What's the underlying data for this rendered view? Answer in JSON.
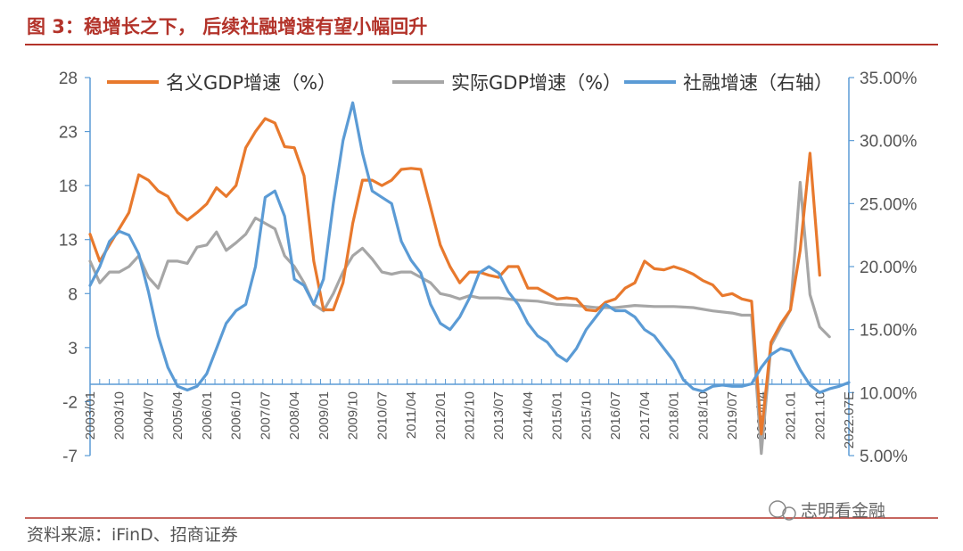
{
  "header": {
    "title": "图 3：稳增长之下，  后续社融增速有望小幅回升"
  },
  "footer": {
    "source": "资料来源：iFinD、招商证券",
    "watermark": "志明看金融"
  },
  "colors": {
    "nominal": "#e8792d",
    "real": "#a6a6a6",
    "tsf": "#5b9bd5",
    "title": "#b3332a",
    "rule": "#b3332a"
  },
  "chart_data": {
    "type": "line",
    "title": "图 3：稳增长之下，  后续社融增速有望小幅回升",
    "legend_position": "top",
    "grid": false,
    "y_left": {
      "ticks": [
        28,
        23,
        18,
        13,
        8,
        3,
        -2,
        -7
      ],
      "min": -7,
      "max": 28
    },
    "y_right": {
      "ticks": [
        "35.00%",
        "30.00%",
        "25.00%",
        "20.00%",
        "15.00%",
        "10.00%",
        "5.00%"
      ],
      "min": 5,
      "max": 35
    },
    "x_ticks": [
      "2003/01",
      "2003/10",
      "2004/07",
      "2005/04",
      "2006/01",
      "2006/10",
      "2007/07",
      "2008/04",
      "2009/01",
      "2009/10",
      "2010/07",
      "2011/04",
      "2012/01",
      "2012/10",
      "2013/07",
      "2014/04",
      "2015/01",
      "2015/10",
      "2016/07",
      "2017/04",
      "2018/01",
      "2018/10",
      "2019/07",
      "2020/04",
      "2021.01",
      "2021.10",
      "2022.07E"
    ],
    "x_range": [
      2003.0,
      2022.5
    ],
    "series": [
      {
        "name": "名义GDP增速（%）",
        "axis": "left",
        "color": "#e8792d",
        "x": [
          2003.0,
          2003.25,
          2003.5,
          2003.75,
          2004.0,
          2004.25,
          2004.5,
          2004.75,
          2005.0,
          2005.25,
          2005.5,
          2005.75,
          2006.0,
          2006.25,
          2006.5,
          2006.75,
          2007.0,
          2007.25,
          2007.5,
          2007.75,
          2008.0,
          2008.25,
          2008.5,
          2008.75,
          2009.0,
          2009.25,
          2009.5,
          2009.75,
          2010.0,
          2010.25,
          2010.5,
          2010.75,
          2011.0,
          2011.25,
          2011.5,
          2011.75,
          2012.0,
          2012.25,
          2012.5,
          2012.75,
          2013.0,
          2013.25,
          2013.5,
          2013.75,
          2014.0,
          2014.25,
          2014.5,
          2014.75,
          2015.0,
          2015.25,
          2015.5,
          2015.75,
          2016.0,
          2016.25,
          2016.5,
          2016.75,
          2017.0,
          2017.25,
          2017.5,
          2017.75,
          2018.0,
          2018.25,
          2018.5,
          2018.75,
          2019.0,
          2019.25,
          2019.5,
          2019.75,
          2020.0,
          2020.25,
          2020.5,
          2020.75,
          2021.0,
          2021.25,
          2021.5,
          2021.75
        ],
        "values": [
          13.5,
          11.0,
          12.5,
          14.0,
          15.5,
          19.0,
          18.5,
          17.5,
          17.0,
          15.5,
          14.8,
          15.5,
          16.3,
          17.8,
          17.0,
          18.0,
          21.5,
          23.0,
          24.2,
          23.8,
          21.6,
          21.5,
          18.9,
          11.0,
          6.5,
          6.5,
          9.0,
          14.5,
          18.5,
          18.5,
          18.0,
          18.5,
          19.5,
          19.6,
          19.5,
          16.0,
          12.5,
          10.5,
          9.0,
          10.0,
          10.0,
          9.7,
          9.5,
          10.5,
          10.5,
          8.5,
          8.5,
          8.0,
          7.5,
          7.6,
          7.5,
          6.5,
          6.4,
          7.2,
          7.5,
          8.5,
          9.0,
          11.0,
          10.3,
          10.2,
          10.5,
          10.2,
          9.8,
          9.2,
          8.8,
          7.8,
          8.0,
          7.5,
          7.3,
          -5.0,
          3.5,
          5.2,
          6.5,
          12.0,
          21.0,
          9.7
        ]
      },
      {
        "name": "实际GDP增速（%）",
        "axis": "left",
        "color": "#a6a6a6",
        "x": [
          2003.0,
          2003.25,
          2003.5,
          2003.75,
          2004.0,
          2004.25,
          2004.5,
          2004.75,
          2005.0,
          2005.25,
          2005.5,
          2005.75,
          2006.0,
          2006.25,
          2006.5,
          2006.75,
          2007.0,
          2007.25,
          2007.5,
          2007.75,
          2008.0,
          2008.25,
          2008.5,
          2008.75,
          2009.0,
          2009.25,
          2009.5,
          2009.75,
          2010.0,
          2010.25,
          2010.5,
          2010.75,
          2011.0,
          2011.25,
          2011.5,
          2011.75,
          2012.0,
          2012.25,
          2012.5,
          2012.75,
          2013.0,
          2013.5,
          2014.0,
          2014.5,
          2015.0,
          2015.5,
          2016.0,
          2016.5,
          2017.0,
          2017.5,
          2018.0,
          2018.5,
          2019.0,
          2019.5,
          2019.75,
          2020.0,
          2020.25,
          2020.5,
          2020.75,
          2021.0,
          2021.25,
          2021.5,
          2021.75,
          2022.0
        ],
        "values": [
          11.0,
          9.0,
          10.0,
          10.0,
          10.5,
          11.5,
          9.5,
          8.5,
          11.0,
          11.0,
          10.8,
          12.3,
          12.5,
          13.7,
          12.0,
          12.7,
          13.5,
          15.0,
          14.5,
          14.0,
          11.5,
          10.5,
          9.0,
          7.0,
          6.4,
          8.0,
          10.0,
          11.5,
          12.2,
          11.2,
          10.0,
          9.8,
          10.0,
          10.0,
          9.5,
          9.0,
          8.0,
          7.8,
          7.5,
          7.8,
          7.6,
          7.6,
          7.4,
          7.3,
          7.0,
          6.9,
          6.7,
          6.7,
          6.9,
          6.8,
          6.8,
          6.7,
          6.4,
          6.2,
          6.0,
          6.0,
          -6.8,
          3.2,
          4.9,
          6.5,
          18.3,
          7.9,
          4.9,
          4.0
        ]
      },
      {
        "name": "社融增速（右轴）",
        "axis": "right",
        "color": "#5b9bd5",
        "x": [
          2003.0,
          2003.25,
          2003.5,
          2003.75,
          2004.0,
          2004.25,
          2004.5,
          2004.75,
          2005.0,
          2005.25,
          2005.5,
          2005.75,
          2006.0,
          2006.25,
          2006.5,
          2006.75,
          2007.0,
          2007.25,
          2007.5,
          2007.75,
          2008.0,
          2008.25,
          2008.5,
          2008.75,
          2009.0,
          2009.25,
          2009.5,
          2009.75,
          2010.0,
          2010.25,
          2010.5,
          2010.75,
          2011.0,
          2011.25,
          2011.5,
          2011.75,
          2012.0,
          2012.25,
          2012.5,
          2012.75,
          2013.0,
          2013.25,
          2013.5,
          2013.75,
          2014.0,
          2014.25,
          2014.5,
          2014.75,
          2015.0,
          2015.25,
          2015.5,
          2015.75,
          2016.0,
          2016.25,
          2016.5,
          2016.75,
          2017.0,
          2017.25,
          2017.5,
          2017.75,
          2018.0,
          2018.25,
          2018.5,
          2018.75,
          2019.0,
          2019.25,
          2019.5,
          2019.75,
          2020.0,
          2020.25,
          2020.5,
          2020.75,
          2021.0,
          2021.25,
          2021.5,
          2021.75,
          2022.0,
          2022.25,
          2022.5
        ],
        "values": [
          18.5,
          20.0,
          22.0,
          22.8,
          22.5,
          21.0,
          18.0,
          14.5,
          12.0,
          10.5,
          10.2,
          10.5,
          11.5,
          13.5,
          15.5,
          16.5,
          17.0,
          20.0,
          25.5,
          26.0,
          24.0,
          19.0,
          18.5,
          17.0,
          19.0,
          25.0,
          30.0,
          33.0,
          29.0,
          26.0,
          25.5,
          25.0,
          22.0,
          20.5,
          19.5,
          17.0,
          15.5,
          15.0,
          16.0,
          17.5,
          19.5,
          20.0,
          19.5,
          18.0,
          17.0,
          15.5,
          14.5,
          14.0,
          13.0,
          12.5,
          13.5,
          15.0,
          16.0,
          17.0,
          16.5,
          16.5,
          16.0,
          15.0,
          14.5,
          13.5,
          12.5,
          11.0,
          10.3,
          10.1,
          10.5,
          10.6,
          10.5,
          10.5,
          10.7,
          12.0,
          13.0,
          13.5,
          13.3,
          11.8,
          10.6,
          10.0,
          10.3,
          10.5,
          10.8
        ]
      }
    ]
  }
}
